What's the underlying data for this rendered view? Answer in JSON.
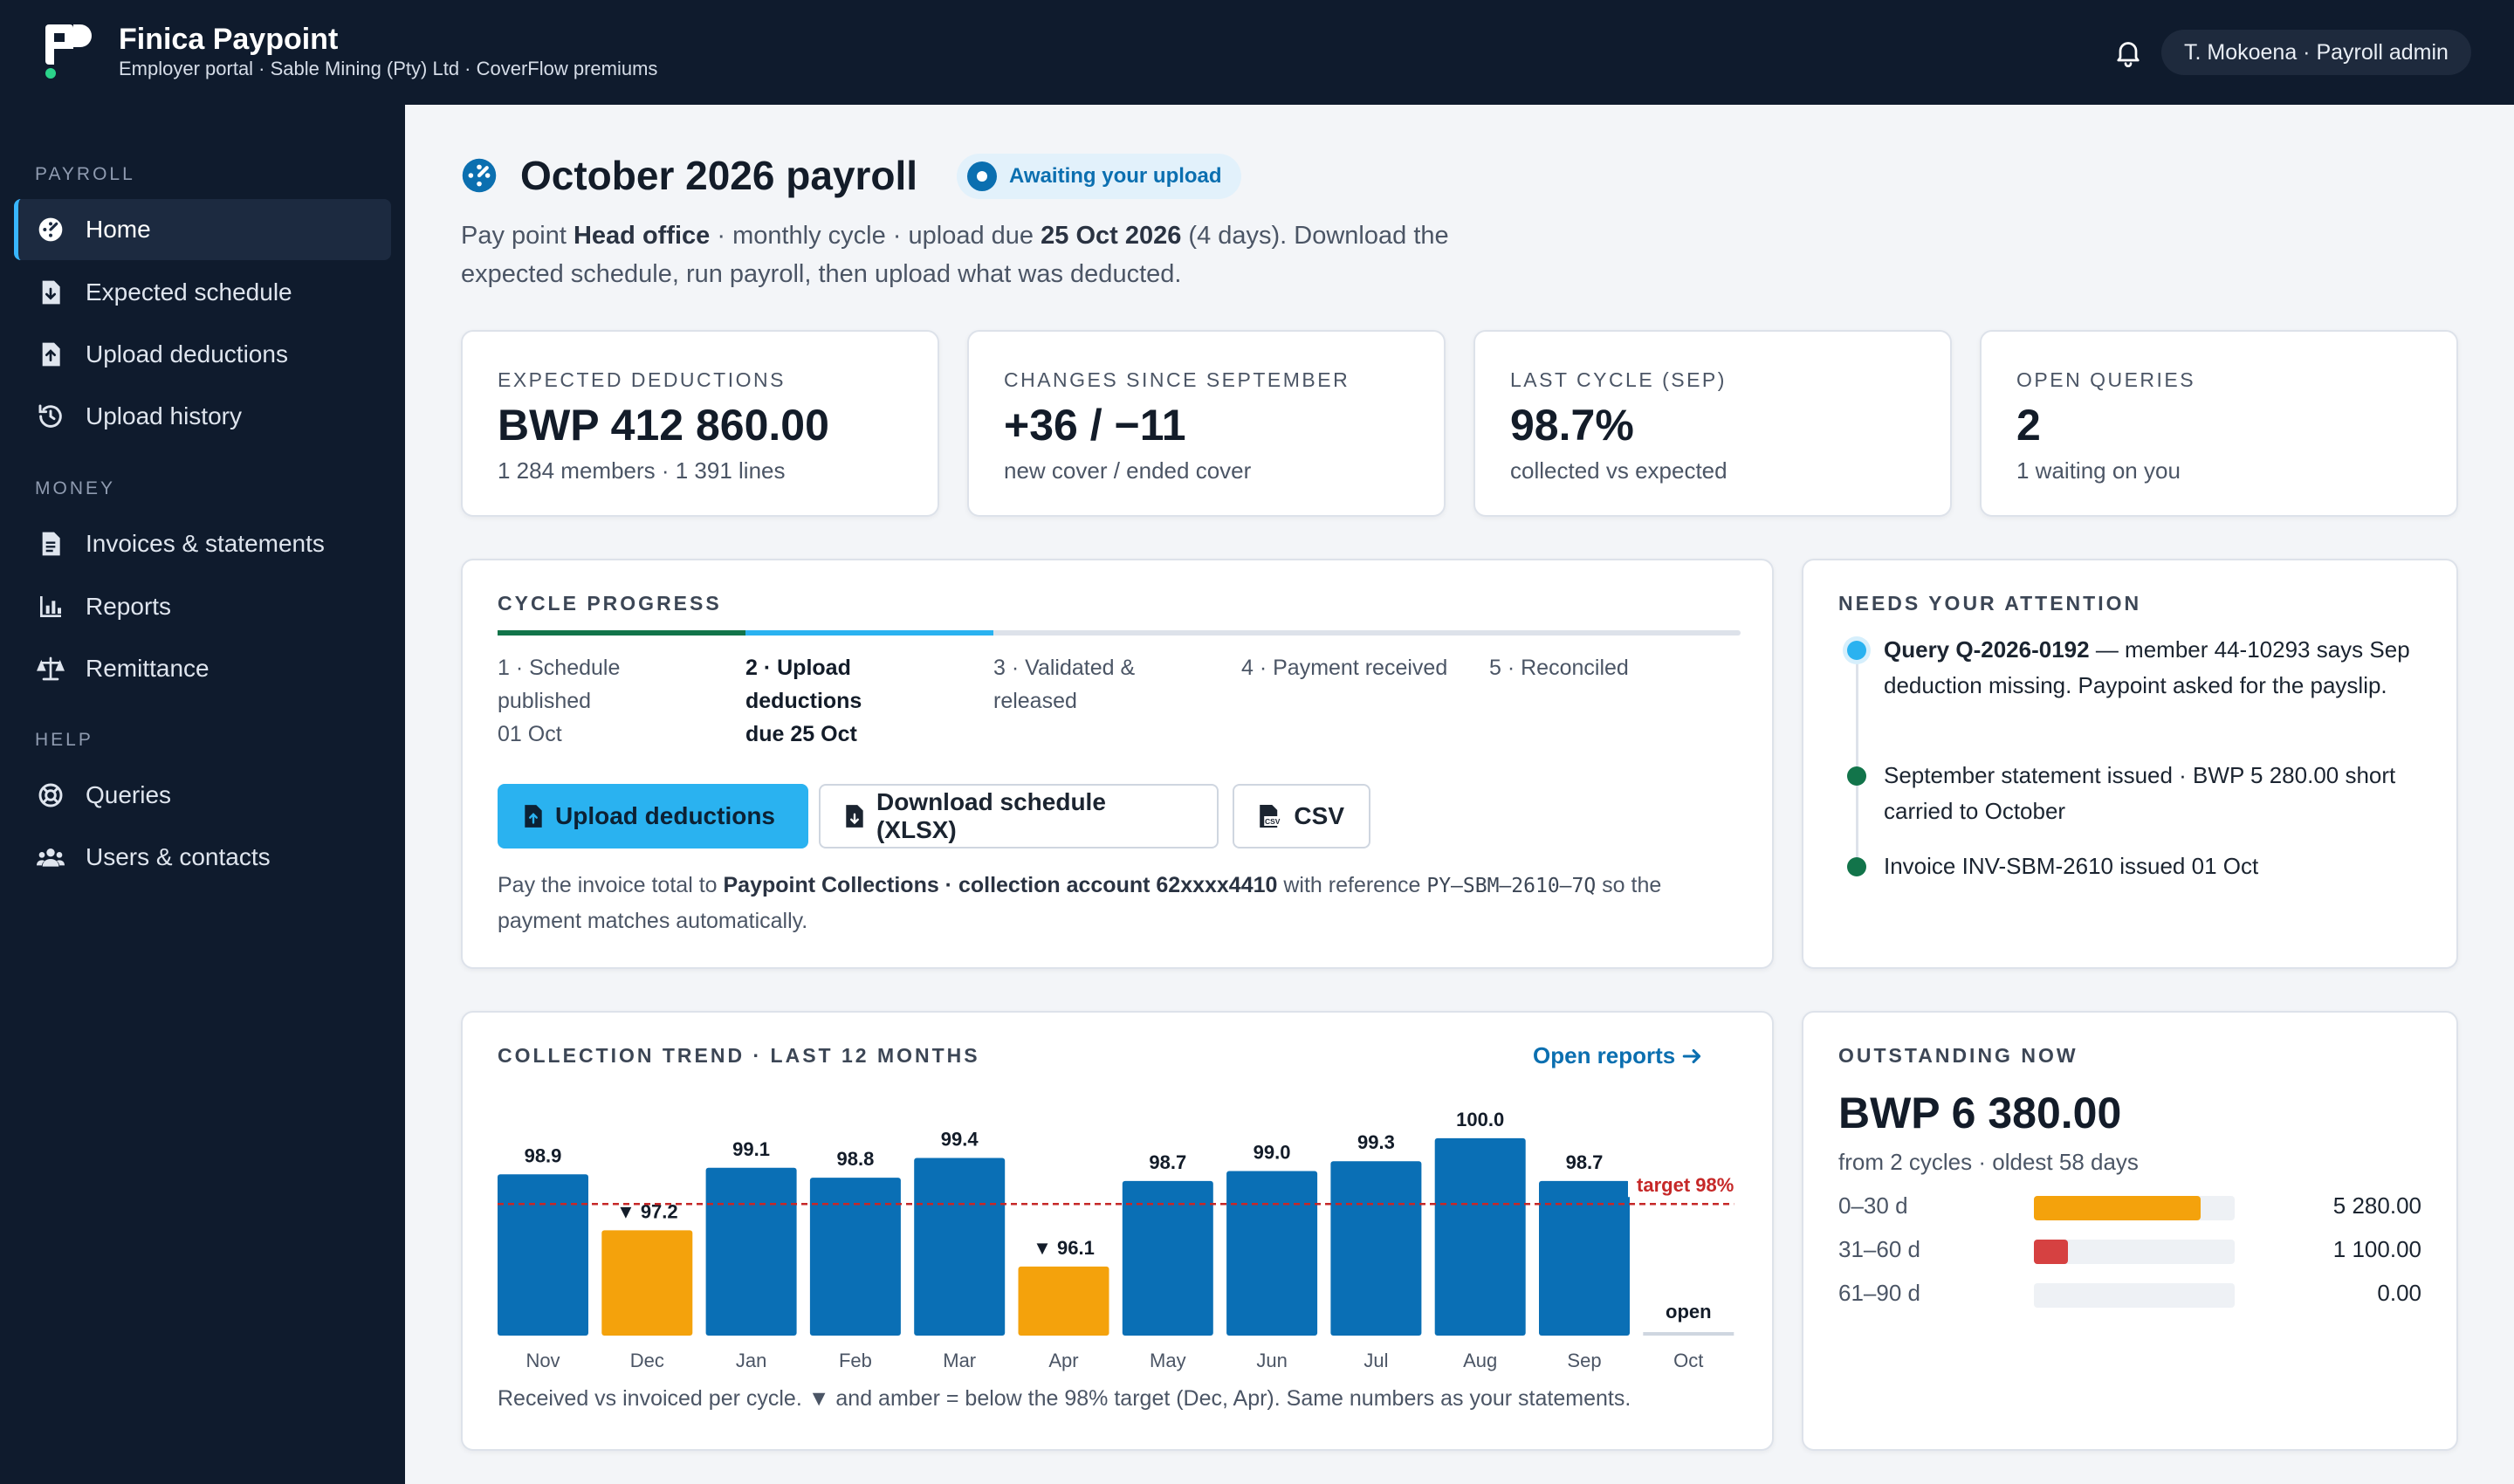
{
  "app": {
    "name": "Finica Paypoint",
    "subtitle": "Employer portal · Sable Mining (Pty) Ltd · CoverFlow premiums",
    "user": "T. Mokoena · Payroll admin"
  },
  "colors": {
    "sidebar_bg": "#0f1b2d",
    "accent": "#2ab2f0",
    "primary_blue": "#0b6fb0",
    "bar_blue": "#0a6fb5",
    "bar_amber": "#f4a20c",
    "target_red": "#c62828",
    "success_green": "#12744a"
  },
  "sidebar": {
    "sections": [
      {
        "label": "PAYROLL",
        "items": [
          {
            "label": "Home",
            "icon": "dashboard-icon",
            "active": true
          },
          {
            "label": "Expected schedule",
            "icon": "file-download-icon"
          },
          {
            "label": "Upload deductions",
            "icon": "file-upload-icon"
          },
          {
            "label": "Upload history",
            "icon": "history-icon"
          }
        ]
      },
      {
        "label": "MONEY",
        "items": [
          {
            "label": "Invoices & statements",
            "icon": "document-icon"
          },
          {
            "label": "Reports",
            "icon": "bar-chart-icon"
          },
          {
            "label": "Remittance",
            "icon": "scale-icon"
          }
        ]
      },
      {
        "label": "HELP",
        "items": [
          {
            "label": "Queries",
            "icon": "lifebuoy-icon"
          },
          {
            "label": "Users & contacts",
            "icon": "users-icon"
          }
        ]
      }
    ]
  },
  "page": {
    "title": "October 2026 payroll",
    "status": "Awaiting your upload",
    "intro": {
      "t1": "Pay point ",
      "paypoint": "Head office",
      "t2": " · monthly cycle · upload due ",
      "due": "25 Oct 2026",
      "t3": " (4 days). Download the expected schedule, run payroll, then upload what was deducted."
    }
  },
  "kpis": [
    {
      "label": "EXPECTED DEDUCTIONS",
      "value": "BWP 412 860.00",
      "sub": "1 284 members · 1 391 lines"
    },
    {
      "label": "CHANGES SINCE SEPTEMBER",
      "value": "+36 / −11",
      "sub": "new cover / ended cover"
    },
    {
      "label": "LAST CYCLE (SEP)",
      "value": "98.7%",
      "sub": "collected vs expected"
    },
    {
      "label": "OPEN QUERIES",
      "value": "2",
      "sub": "1 waiting on you"
    }
  ],
  "cycle": {
    "title": "CYCLE PROGRESS",
    "steps": [
      {
        "l1": "1 · Schedule",
        "l2": "published",
        "l3": "01 Oct",
        "state": "done"
      },
      {
        "l1": "2 · Upload",
        "l2": "deductions",
        "l3": "due 25 Oct",
        "state": "current"
      },
      {
        "l1": "3 · Validated &",
        "l2": "released",
        "l3": "",
        "state": "pending"
      },
      {
        "l1": "4 · Payment received",
        "l2": "",
        "l3": "",
        "state": "pending"
      },
      {
        "l1": "5 · Reconciled",
        "l2": "",
        "l3": "",
        "state": "pending"
      }
    ],
    "buttons": {
      "upload": "Upload deductions",
      "download": "Download schedule (XLSX)",
      "csv": "CSV"
    },
    "payment_note": {
      "t1": "Pay the invoice total to ",
      "payee": "Paypoint Collections · collection account 62xxxx4410",
      "t2": " with reference ",
      "reference": "PY–SBM–2610–7Q",
      "t3": " so the payment matches automatically."
    }
  },
  "attention": {
    "title": "NEEDS YOUR ATTENTION",
    "items": [
      {
        "strong": "Query Q-2026-0192",
        "text": " — member 44-10293 says Sep deduction missing. Paypoint asked for the payslip.",
        "color": "#2ab2f0"
      },
      {
        "strong": "",
        "text": "September statement issued · BWP 5 280.00 short carried to October",
        "color": "#12744a"
      },
      {
        "strong": "",
        "text": "Invoice INV-SBM-2610 issued 01 Oct",
        "color": "#12744a"
      }
    ]
  },
  "trend": {
    "title": "COLLECTION TREND · LAST 12 MONTHS",
    "link": "Open reports",
    "footnote": "Received vs invoiced per cycle. ▼ and amber = below the 98% target (Dec, Apr). Same numbers as your statements."
  },
  "chart_data": {
    "type": "bar",
    "title": "COLLECTION TREND · LAST 12 MONTHS",
    "categories": [
      "Nov",
      "Dec",
      "Jan",
      "Feb",
      "Mar",
      "Apr",
      "May",
      "Jun",
      "Jul",
      "Aug",
      "Sep",
      "Oct"
    ],
    "values": [
      98.9,
      97.2,
      99.1,
      98.8,
      99.4,
      96.1,
      98.7,
      99.0,
      99.3,
      100.0,
      98.7,
      null
    ],
    "labels": [
      "98.9",
      "▼ 97.2",
      "99.1",
      "98.8",
      "99.4",
      "▼ 96.1",
      "98.7",
      "99.0",
      "99.3",
      "100.0",
      "98.7",
      "open"
    ],
    "below_target": [
      false,
      true,
      false,
      false,
      false,
      true,
      false,
      false,
      false,
      false,
      false,
      false
    ],
    "target": 98,
    "target_label": "target 98%",
    "ylim": [
      94,
      100.5
    ],
    "xlabel": "",
    "ylabel": "",
    "grid": false
  },
  "outstanding": {
    "title": "OUTSTANDING NOW",
    "value": "BWP 6 380.00",
    "sub": "from 2 cycles · oldest 58 days",
    "buckets": [
      {
        "label": "0–30 d",
        "amount": "5 280.00",
        "share": 0.83,
        "color": "#f4a20c"
      },
      {
        "label": "31–60 d",
        "amount": "1 100.00",
        "share": 0.17,
        "color": "#d64141"
      },
      {
        "label": "61–90 d",
        "amount": "0.00",
        "share": 0,
        "color": "#d64141"
      }
    ]
  }
}
